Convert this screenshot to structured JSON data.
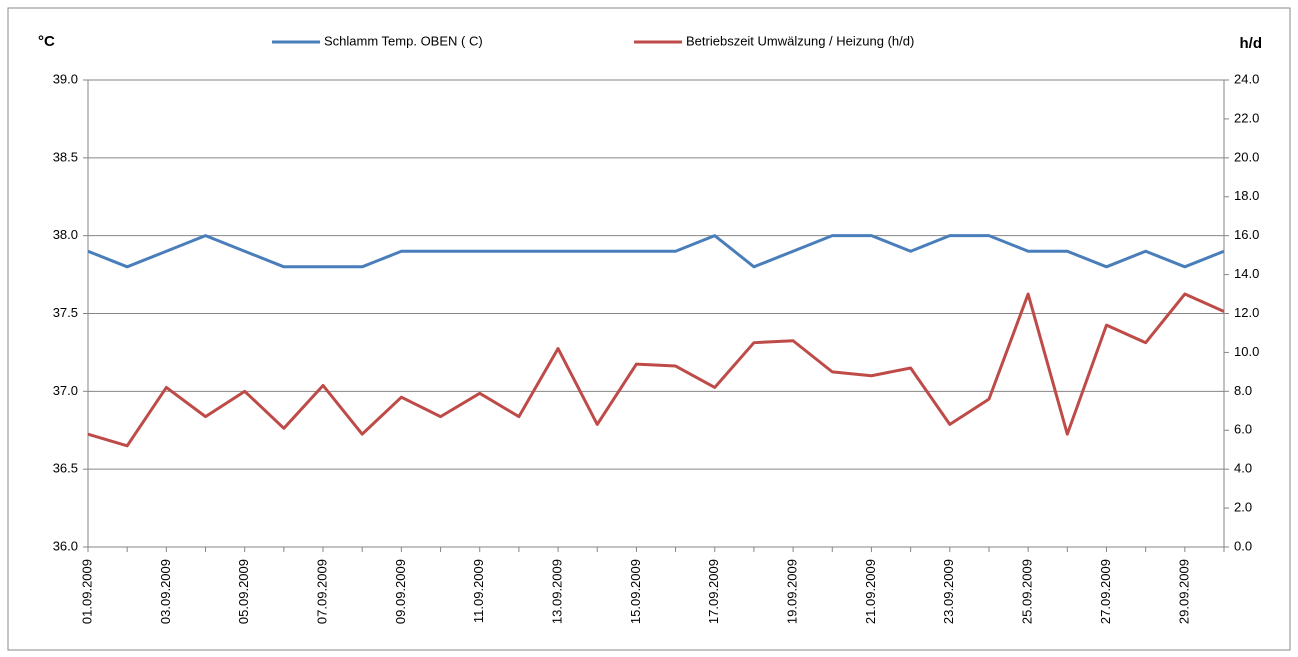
{
  "chart_data": {
    "type": "line",
    "y_label": "°C",
    "y2_label": "h/d",
    "categories": [
      "01.09.2009",
      null,
      "03.09.2009",
      null,
      "05.09.2009",
      null,
      "07.09.2009",
      null,
      "09.09.2009",
      null,
      "11.09.2009",
      null,
      "13.09.2009",
      null,
      "15.09.2009",
      null,
      "17.09.2009",
      null,
      "19.09.2009",
      null,
      "21.09.2009",
      null,
      "23.09.2009",
      null,
      "25.09.2009",
      null,
      "27.09.2009",
      null,
      "29.09.2009",
      null
    ],
    "series": [
      {
        "name": "Schlamm Temp. OBEN ( C)",
        "color": "#4a7ebb",
        "axis": "y",
        "values": [
          37.9,
          37.8,
          37.9,
          38.0,
          37.9,
          37.8,
          37.8,
          37.8,
          37.9,
          37.9,
          37.9,
          37.9,
          37.9,
          37.9,
          37.9,
          37.9,
          38.0,
          37.8,
          37.9,
          38.0,
          38.0,
          37.9,
          38.0,
          38.0,
          37.9,
          37.9,
          37.8,
          37.9,
          37.8,
          37.9
        ]
      },
      {
        "name": "Betriebszeit Umwälzung / Heizung (h/d)",
        "color": "#be4b48",
        "axis": "y2",
        "values": [
          5.8,
          5.2,
          8.2,
          6.7,
          8.0,
          6.1,
          8.3,
          5.8,
          7.7,
          6.7,
          7.9,
          6.7,
          10.2,
          6.3,
          9.4,
          9.3,
          8.2,
          10.5,
          10.6,
          9.0,
          8.8,
          9.2,
          6.3,
          7.6,
          13.0,
          5.8,
          11.4,
          10.5,
          13.0,
          12.1
        ]
      }
    ],
    "ylim": [
      36,
      39
    ],
    "yticks": [
      {
        "value": 36,
        "label": "36.0"
      },
      {
        "value": 36.5,
        "label": "36.5"
      },
      {
        "value": 37,
        "label": "37.0"
      },
      {
        "value": 37.5,
        "label": "37.5"
      },
      {
        "value": 38,
        "label": "38.0"
      },
      {
        "value": 38.5,
        "label": "38.5"
      },
      {
        "value": 39,
        "label": "39.0"
      }
    ],
    "y2lim": [
      0,
      24
    ],
    "y2ticks": [
      {
        "value": 0,
        "label": "0.0"
      },
      {
        "value": 2,
        "label": "2.0"
      },
      {
        "value": 4,
        "label": "4.0"
      },
      {
        "value": 6,
        "label": "6.0"
      },
      {
        "value": 8,
        "label": "8.0"
      },
      {
        "value": 10,
        "label": "10.0"
      },
      {
        "value": 12,
        "label": "12.0"
      },
      {
        "value": 14,
        "label": "14.0"
      },
      {
        "value": 16,
        "label": "16.0"
      },
      {
        "value": 18,
        "label": "18.0"
      },
      {
        "value": 20,
        "label": "20.0"
      },
      {
        "value": 22,
        "label": "22.0"
      },
      {
        "value": 24,
        "label": "24.0"
      }
    ],
    "grid": true,
    "legend": "top"
  }
}
